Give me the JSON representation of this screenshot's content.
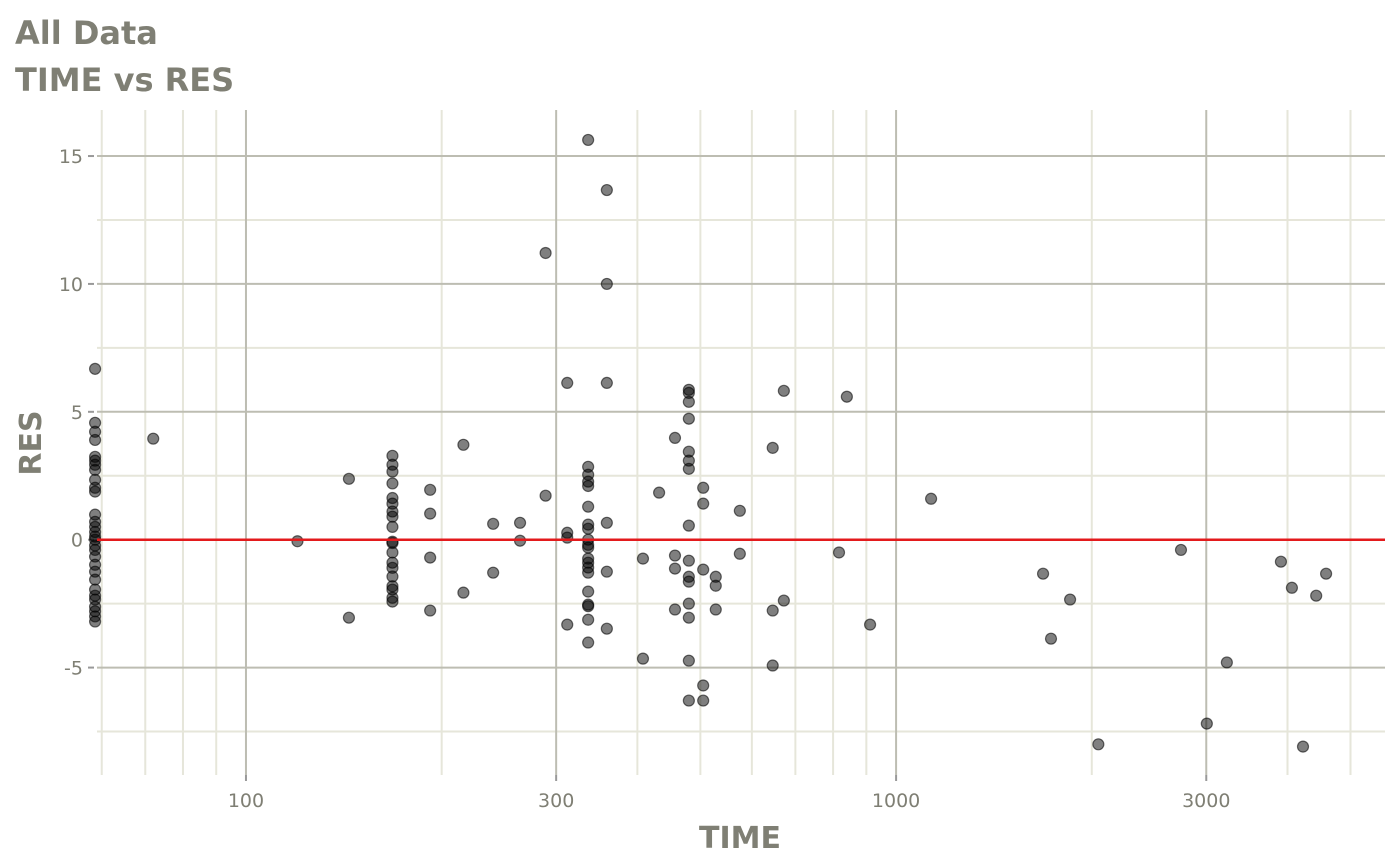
{
  "chart_data": {
    "type": "scatter",
    "title": "All Data",
    "subtitle": "TIME vs RES",
    "xlabel": "TIME",
    "ylabel": "RES",
    "x_scale": "log",
    "xlim": [
      59,
      5650
    ],
    "ylim": [
      -9.2,
      16.8
    ],
    "x_ticks": [
      100,
      300,
      1000,
      3000
    ],
    "x_tick_labels": [
      "100",
      "300",
      "1000",
      "3000"
    ],
    "x_minor_grid": [
      60,
      70,
      80,
      90,
      200,
      400,
      500,
      600,
      700,
      800,
      900,
      2000,
      4000,
      5000
    ],
    "y_ticks": [
      -5,
      0,
      5,
      10,
      15
    ],
    "y_tick_labels": [
      "-5",
      "0",
      "5",
      "10",
      "15"
    ],
    "y_minor_grid": [
      -7.5,
      -2.5,
      2.5,
      7.5,
      12.5
    ],
    "grid": true,
    "reference_line": {
      "y": 0,
      "color": "#e31a1c"
    },
    "point_color": "#000000",
    "point_alpha": 0.5,
    "points": [
      [
        58.6,
        6.68
      ],
      [
        58.6,
        4.57
      ],
      [
        58.6,
        4.22
      ],
      [
        58.6,
        3.9
      ],
      [
        58.6,
        3.24
      ],
      [
        58.6,
        3.09
      ],
      [
        58.6,
        2.93
      ],
      [
        58.6,
        2.73
      ],
      [
        58.6,
        2.34
      ],
      [
        58.6,
        2.03
      ],
      [
        58.6,
        1.88
      ],
      [
        58.6,
        0.98
      ],
      [
        58.6,
        0.7
      ],
      [
        58.6,
        0.5
      ],
      [
        58.6,
        0.3
      ],
      [
        58.6,
        0.12
      ],
      [
        58.6,
        0
      ],
      [
        58.6,
        -0.23
      ],
      [
        58.6,
        -0.4
      ],
      [
        58.6,
        -0.66
      ],
      [
        58.6,
        -0.98
      ],
      [
        58.6,
        -1.25
      ],
      [
        58.6,
        -1.56
      ],
      [
        58.6,
        -1.95
      ],
      [
        58.6,
        -2.19
      ],
      [
        58.6,
        -2.34
      ],
      [
        58.6,
        -2.62
      ],
      [
        58.6,
        -2.8
      ],
      [
        58.6,
        -3.0
      ],
      [
        58.6,
        -3.2
      ],
      [
        72,
        3.95
      ],
      [
        120,
        -0.06
      ],
      [
        144,
        2.38
      ],
      [
        144,
        -3.05
      ],
      [
        168,
        3.28
      ],
      [
        168,
        2.93
      ],
      [
        168,
        2.66
      ],
      [
        168,
        2.2
      ],
      [
        168,
        1.63
      ],
      [
        168,
        1.41
      ],
      [
        168,
        1.1
      ],
      [
        168,
        0.9
      ],
      [
        168,
        0.5
      ],
      [
        168,
        -0.08
      ],
      [
        168,
        -0.13
      ],
      [
        168,
        -0.5
      ],
      [
        168,
        -0.9
      ],
      [
        168,
        -1.1
      ],
      [
        168,
        -1.44
      ],
      [
        168,
        -1.82
      ],
      [
        168,
        -1.95
      ],
      [
        168,
        -2.27
      ],
      [
        168,
        -2.42
      ],
      [
        192,
        1.95
      ],
      [
        192,
        1.02
      ],
      [
        192,
        -0.7
      ],
      [
        192,
        -2.77
      ],
      [
        216,
        3.71
      ],
      [
        216,
        -2.07
      ],
      [
        240,
        0.62
      ],
      [
        240,
        -1.29
      ],
      [
        264,
        0.66
      ],
      [
        264,
        -0.04
      ],
      [
        289,
        11.21
      ],
      [
        289,
        1.72
      ],
      [
        312,
        6.13
      ],
      [
        312,
        0.27
      ],
      [
        312,
        0.08
      ],
      [
        312,
        -3.32
      ],
      [
        336,
        15.63
      ],
      [
        336,
        2.85
      ],
      [
        336,
        2.54
      ],
      [
        336,
        2.27
      ],
      [
        336,
        2.1
      ],
      [
        336,
        1.29
      ],
      [
        336,
        0.59
      ],
      [
        336,
        0.43
      ],
      [
        336,
        0
      ],
      [
        336,
        -0.2
      ],
      [
        336,
        -0.31
      ],
      [
        336,
        -0.74
      ],
      [
        336,
        -0.9
      ],
      [
        336,
        -1.09
      ],
      [
        336,
        -1.29
      ],
      [
        336,
        -2.03
      ],
      [
        336,
        -2.54
      ],
      [
        336,
        -2.6
      ],
      [
        336,
        -3.13
      ],
      [
        336,
        -4.02
      ],
      [
        359,
        13.67
      ],
      [
        359,
        10.0
      ],
      [
        359,
        6.13
      ],
      [
        359,
        0.66
      ],
      [
        359,
        -1.25
      ],
      [
        359,
        -3.48
      ],
      [
        408,
        -0.74
      ],
      [
        408,
        -4.65
      ],
      [
        432,
        1.84
      ],
      [
        457,
        3.98
      ],
      [
        457,
        -0.62
      ],
      [
        457,
        -1.13
      ],
      [
        457,
        -2.73
      ],
      [
        480,
        5.86
      ],
      [
        480,
        5.74
      ],
      [
        480,
        5.39
      ],
      [
        480,
        4.73
      ],
      [
        480,
        3.44
      ],
      [
        480,
        3.09
      ],
      [
        480,
        2.77
      ],
      [
        480,
        0.55
      ],
      [
        480,
        -0.82
      ],
      [
        480,
        -1.45
      ],
      [
        480,
        -1.64
      ],
      [
        480,
        -2.5
      ],
      [
        480,
        -3.05
      ],
      [
        480,
        -4.73
      ],
      [
        480,
        -6.29
      ],
      [
        505,
        2.03
      ],
      [
        505,
        1.41
      ],
      [
        505,
        -1.17
      ],
      [
        505,
        -5.7
      ],
      [
        505,
        -6.29
      ],
      [
        528,
        -1.45
      ],
      [
        528,
        -1.8
      ],
      [
        528,
        -2.73
      ],
      [
        575,
        1.13
      ],
      [
        575,
        -0.55
      ],
      [
        646,
        3.59
      ],
      [
        646,
        -2.77
      ],
      [
        646,
        -4.92
      ],
      [
        672,
        5.82
      ],
      [
        672,
        -2.38
      ],
      [
        817,
        -0.5
      ],
      [
        840,
        5.59
      ],
      [
        912,
        -3.32
      ],
      [
        1132,
        1.6
      ],
      [
        1683,
        -1.33
      ],
      [
        1731,
        -3.87
      ],
      [
        1852,
        -2.34
      ],
      [
        2047,
        -8.0
      ],
      [
        2743,
        -0.4
      ],
      [
        3006,
        -7.19
      ],
      [
        3227,
        -4.8
      ],
      [
        3908,
        -0.86
      ],
      [
        4063,
        -1.88
      ],
      [
        4226,
        -8.09
      ],
      [
        4428,
        -2.19
      ],
      [
        4586,
        -1.33
      ]
    ]
  }
}
